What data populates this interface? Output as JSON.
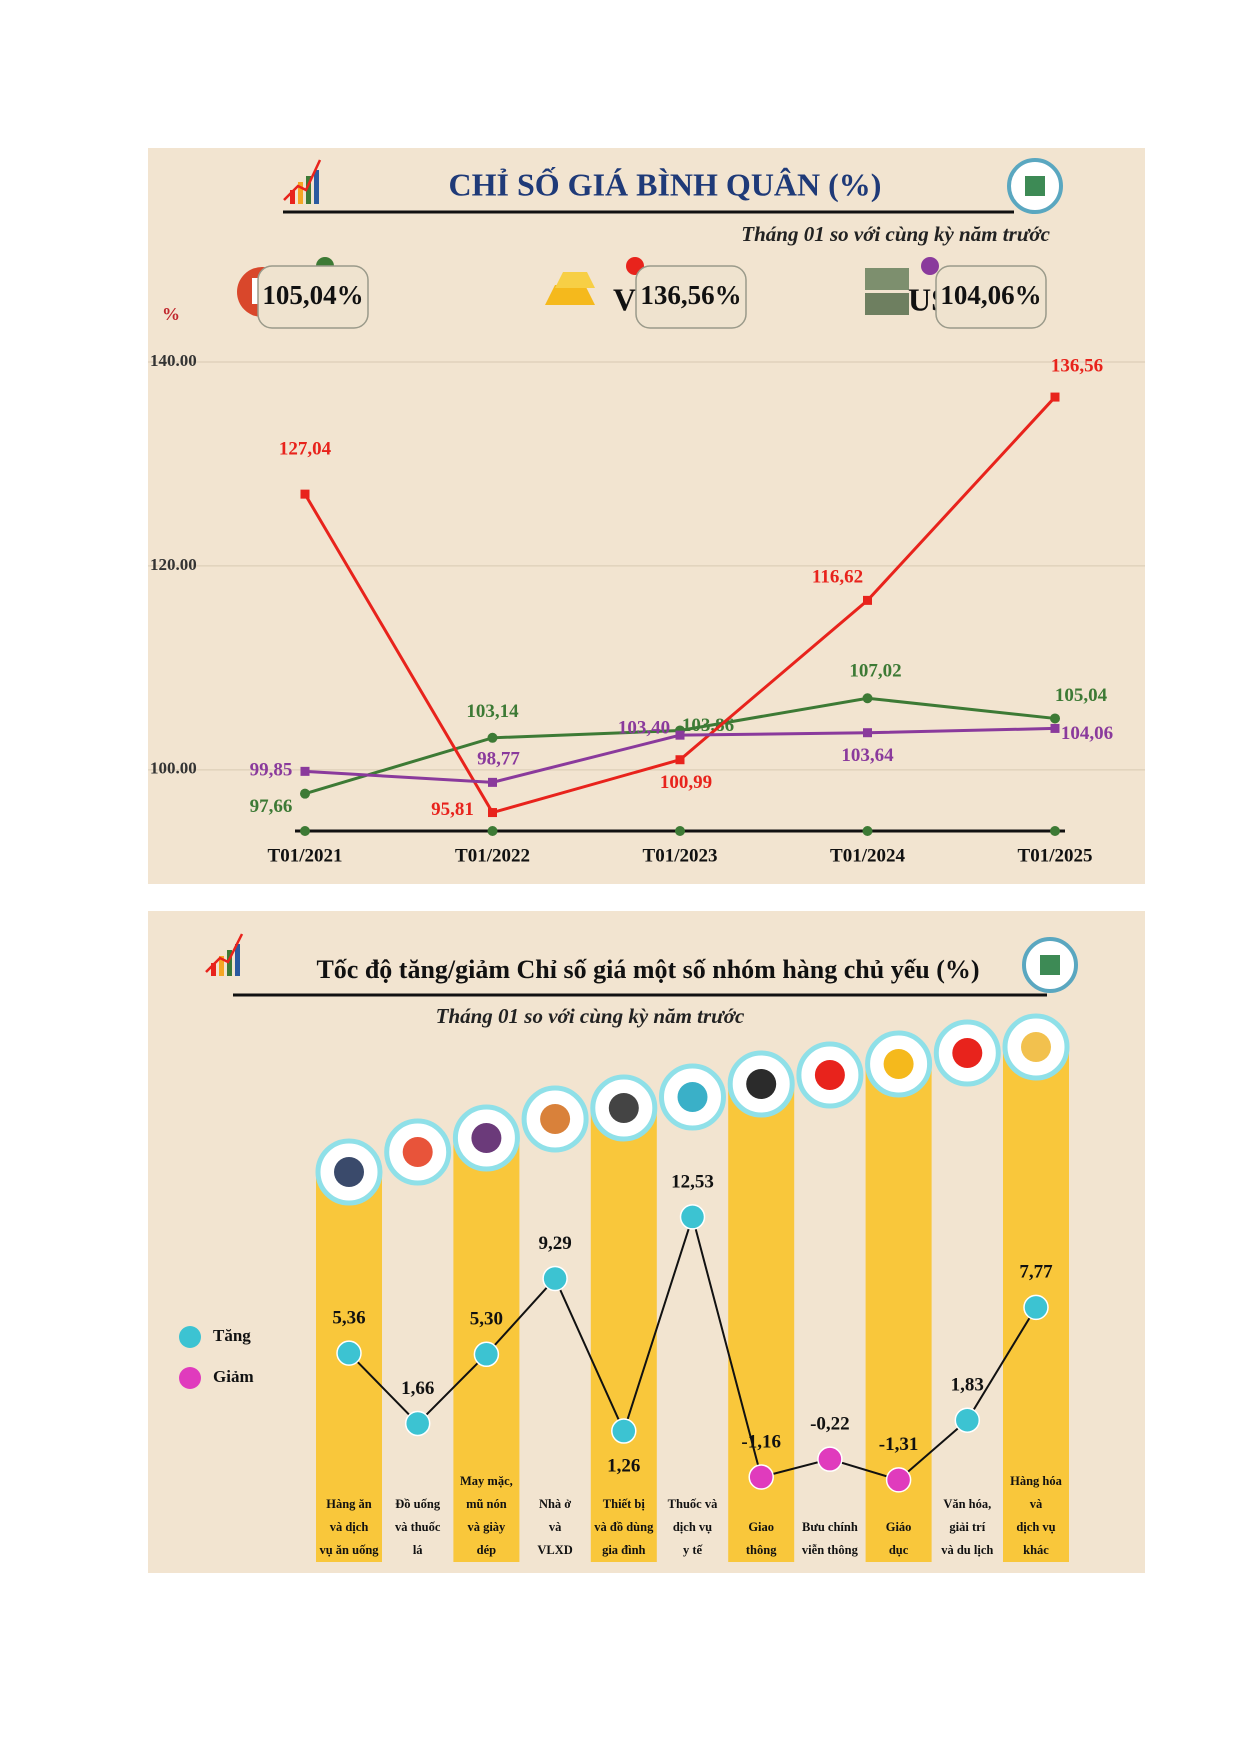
{
  "chart_data": [
    {
      "type": "line",
      "title": "CHỈ SỐ GIÁ BÌNH QUÂN (%)",
      "subtitle": "Tháng 01 so với cùng kỳ năm trước",
      "y_label": "%",
      "categories": [
        "T01/2021",
        "T01/2022",
        "T01/2023",
        "T01/2024",
        "T01/2025"
      ],
      "series": [
        {
          "name": "CPI",
          "color": "#3d7a35",
          "badge": "105,04%",
          "values": [
            97.66,
            103.14,
            103.86,
            107.02,
            105.04
          ],
          "value_labels": [
            "97,66",
            "103,14",
            "103,86",
            "107,02",
            "105,04"
          ]
        },
        {
          "name": "Vàng",
          "color": "#e8231c",
          "badge": "136,56%",
          "values": [
            127.04,
            95.81,
            100.99,
            116.62,
            136.56
          ],
          "value_labels": [
            "127,04",
            "95,81",
            "100,99",
            "116,62",
            "136,56"
          ]
        },
        {
          "name": "USD",
          "color": "#8a3a9c",
          "badge": "104,06%",
          "values": [
            99.85,
            98.77,
            103.4,
            103.64,
            104.06
          ],
          "value_labels": [
            "99,85",
            "98,77",
            "103,40",
            "103,64",
            "104,06"
          ]
        }
      ],
      "ylim": [
        94,
        140
      ],
      "yticks": [
        {
          "value": 100,
          "label": "100.00"
        },
        {
          "value": 120,
          "label": "120.00"
        },
        {
          "value": 140,
          "label": "140.00"
        }
      ],
      "grid": true
    },
    {
      "type": "dot-line",
      "title": "Tốc độ tăng/giảm Chỉ số giá một số nhóm hàng chủ yếu (%)",
      "subtitle": "Tháng 01 so với cùng kỳ năm trước",
      "categories": [
        "Hàng ăn\nvà dịch\nvụ ăn uống",
        "Đồ uống\nvà thuốc\nlá",
        "May mặc,\nmũ nón\nvà giày\ndép",
        "Nhà ở\nvà\nVLXD",
        "Thiết bị\nvà đồ dùng\ngia đình",
        "Thuốc và\ndịch vụ\ny tế",
        "Giao\nthông",
        "Bưu chính\nviễn thông",
        "Giáo\ndục",
        "Văn hóa,\ngiải trí\nvà du lịch",
        "Hàng hóa\nvà\ndịch vụ\nkhác"
      ],
      "values": [
        5.36,
        1.66,
        5.3,
        9.29,
        1.26,
        12.53,
        -1.16,
        -0.22,
        -1.31,
        1.83,
        7.77
      ],
      "value_labels": [
        "5,36",
        "1,66",
        "5,30",
        "9,29",
        "1,26",
        "12,53",
        "-1,16",
        "-0,22",
        "-1,31",
        "1,83",
        "7,77"
      ],
      "ylim": [
        -3,
        15
      ],
      "line_color": "#111111",
      "legend": [
        {
          "name": "Tăng",
          "color": "#3cc3d2"
        },
        {
          "name": "Giảm",
          "color": "#e03bbd"
        }
      ]
    }
  ]
}
